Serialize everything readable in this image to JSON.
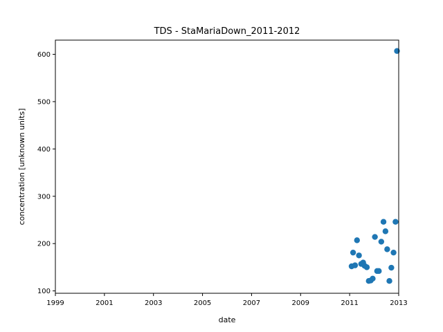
{
  "chart_data": {
    "type": "scatter",
    "title": "TDS - StaMariaDown_2011-2012",
    "xlabel": "date",
    "ylabel": "concentration [unknown units]",
    "xlim": [
      1999,
      2013
    ],
    "ylim": [
      95,
      630
    ],
    "xticks": [
      "1999",
      "2001",
      "2003",
      "2005",
      "2007",
      "2009",
      "2011",
      "2013"
    ],
    "yticks": [
      "100",
      "200",
      "300",
      "400",
      "500",
      "600"
    ],
    "grid": false,
    "marker_color": "#1f77b4",
    "points": [
      {
        "x": 2011.08,
        "y": 152
      },
      {
        "x": 2011.14,
        "y": 181
      },
      {
        "x": 2011.22,
        "y": 154
      },
      {
        "x": 2011.3,
        "y": 207
      },
      {
        "x": 2011.38,
        "y": 175
      },
      {
        "x": 2011.47,
        "y": 157
      },
      {
        "x": 2011.55,
        "y": 160
      },
      {
        "x": 2011.61,
        "y": 153
      },
      {
        "x": 2011.7,
        "y": 150
      },
      {
        "x": 2011.78,
        "y": 121
      },
      {
        "x": 2011.86,
        "y": 122
      },
      {
        "x": 2011.94,
        "y": 126
      },
      {
        "x": 2012.03,
        "y": 214
      },
      {
        "x": 2012.12,
        "y": 142
      },
      {
        "x": 2012.19,
        "y": 142
      },
      {
        "x": 2012.29,
        "y": 204
      },
      {
        "x": 2012.38,
        "y": 246
      },
      {
        "x": 2012.46,
        "y": 226
      },
      {
        "x": 2012.53,
        "y": 188
      },
      {
        "x": 2012.62,
        "y": 121
      },
      {
        "x": 2012.7,
        "y": 149
      },
      {
        "x": 2012.79,
        "y": 181
      },
      {
        "x": 2012.87,
        "y": 246
      },
      {
        "x": 2012.93,
        "y": 607
      }
    ]
  }
}
